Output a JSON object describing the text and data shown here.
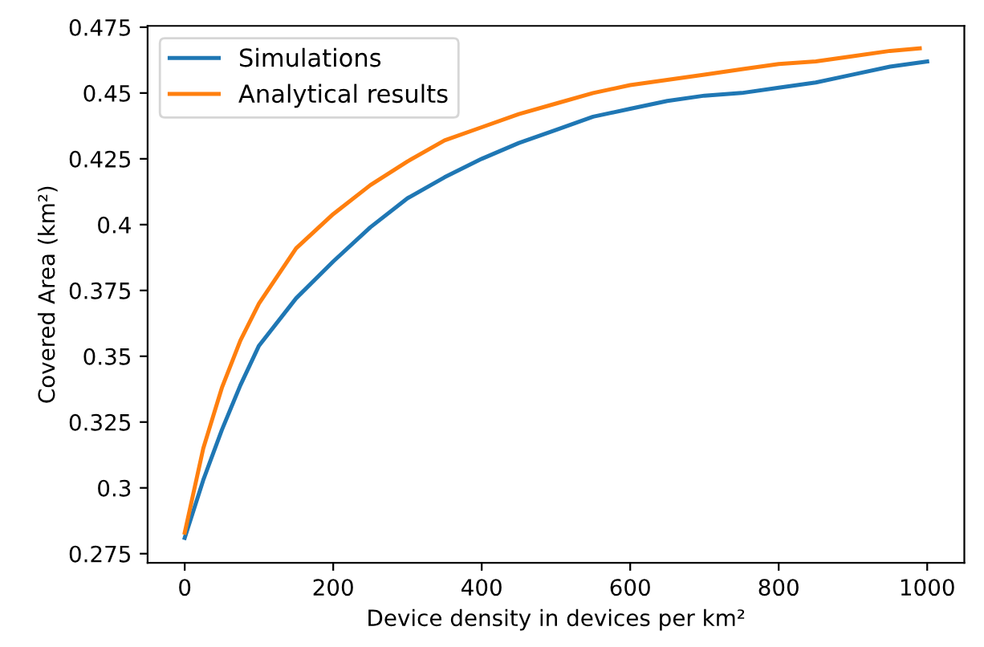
{
  "chart_data": {
    "type": "line",
    "xlabel": "Device density in devices per km²",
    "ylabel": "Covered Area (km²)",
    "xlim": [
      -50,
      1050
    ],
    "ylim": [
      0.2715,
      0.4755
    ],
    "xticks": [
      0,
      200,
      400,
      600,
      800,
      1000
    ],
    "yticks": [
      0.275,
      0.3,
      0.325,
      0.35,
      0.375,
      0.4,
      0.425,
      0.45,
      0.475
    ],
    "legend": "top left",
    "grid": false,
    "series": [
      {
        "name": "Simulations",
        "color": "#1f77b4",
        "x": [
          0,
          25,
          50,
          75,
          100,
          150,
          200,
          250,
          300,
          350,
          400,
          450,
          500,
          550,
          600,
          650,
          700,
          750,
          800,
          850,
          900,
          950,
          1000
        ],
        "values": [
          0.281,
          0.303,
          0.322,
          0.339,
          0.354,
          0.372,
          0.386,
          0.399,
          0.41,
          0.418,
          0.425,
          0.431,
          0.436,
          0.441,
          0.444,
          0.447,
          0.449,
          0.45,
          0.452,
          0.454,
          0.457,
          0.46,
          0.462
        ]
      },
      {
        "name": "Analytical results",
        "color": "#ff7f0e",
        "x": [
          0,
          25,
          50,
          75,
          100,
          150,
          200,
          250,
          300,
          350,
          400,
          450,
          500,
          550,
          600,
          650,
          700,
          750,
          800,
          850,
          900,
          950,
          990
        ],
        "values": [
          0.283,
          0.315,
          0.338,
          0.356,
          0.37,
          0.391,
          0.404,
          0.415,
          0.424,
          0.432,
          0.437,
          0.442,
          0.446,
          0.45,
          0.453,
          0.455,
          0.457,
          0.459,
          0.461,
          0.462,
          0.464,
          0.466,
          0.467
        ]
      }
    ]
  }
}
